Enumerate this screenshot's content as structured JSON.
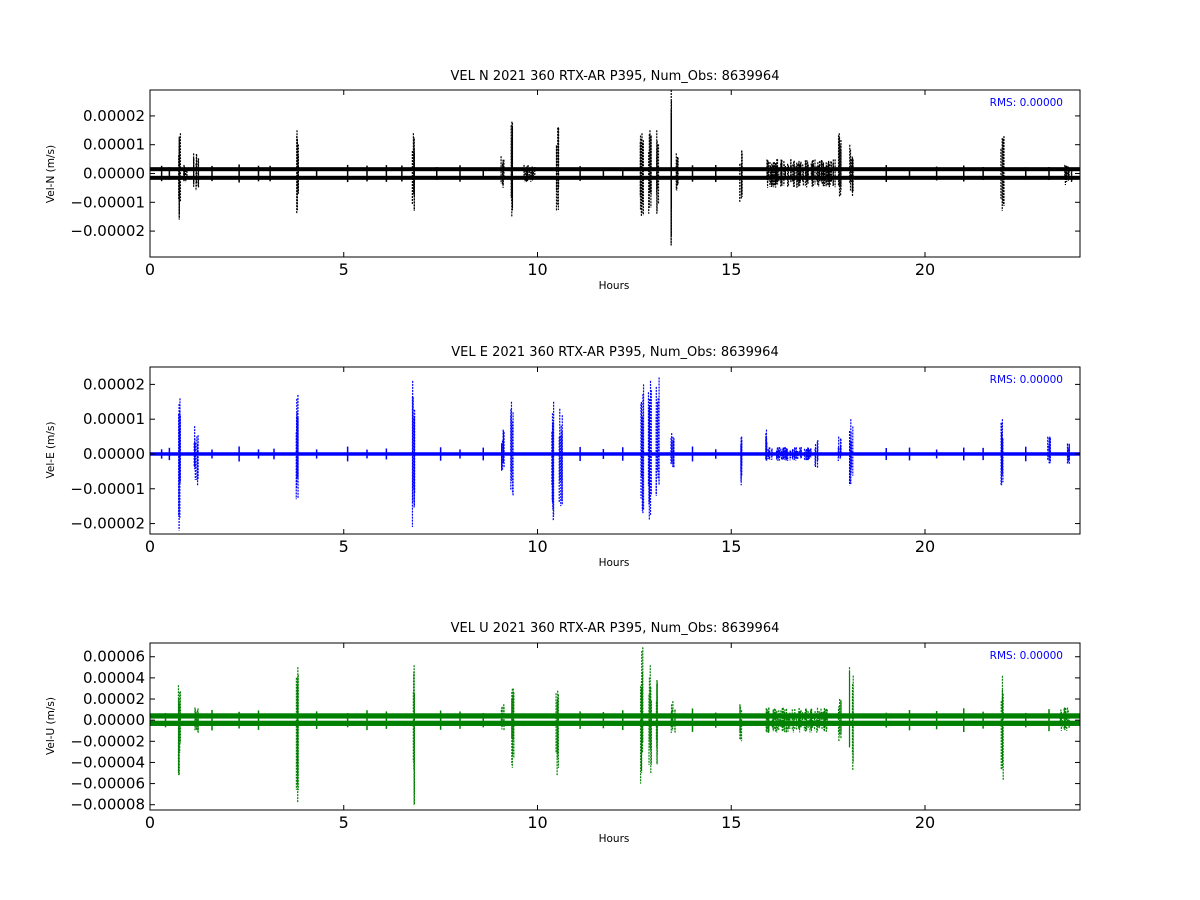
{
  "chart_data": [
    {
      "type": "scatter",
      "title": "VEL N 2021 360 RTX-AR  P395, Num_Obs: 8639964",
      "xlabel": "Hours",
      "ylabel": "Vel-N (m/s)",
      "rms_label": "RMS:  0.00000",
      "color": "#000000",
      "xlim": [
        0,
        24
      ],
      "ylim": [
        -2.9e-05,
        2.9e-05
      ],
      "xticks": [
        0,
        5,
        10,
        15,
        20
      ],
      "xtick_labels": [
        "0",
        "5",
        "10",
        "15",
        "20"
      ],
      "yticks": [
        2e-05,
        1e-05,
        0.0,
        -1e-05,
        -2e-05
      ],
      "ytick_labels": [
        "0.00002",
        "0.00001",
        "0.00000",
        "−0.00001",
        "−0.00002"
      ],
      "grid": false,
      "baseline_bands": [
        1.5e-06,
        -1.5e-06
      ],
      "band_halfwidth": 7e-07,
      "bursts": [
        {
          "x": 0.76,
          "max": 1.4e-05,
          "min": -1.6e-05,
          "width": 0.06
        },
        {
          "x": 0.9,
          "max": 3e-06,
          "min": -3e-06,
          "width": 0.12
        },
        {
          "x": 1.2,
          "max": 7e-06,
          "min": -6e-06,
          "width": 0.15
        },
        {
          "x": 3.8,
          "max": 1.5e-05,
          "min": -1.4e-05,
          "width": 0.06
        },
        {
          "x": 6.8,
          "max": 1.4e-05,
          "min": -1.3e-05,
          "width": 0.06
        },
        {
          "x": 9.1,
          "max": 6e-06,
          "min": -5e-06,
          "width": 0.08
        },
        {
          "x": 9.35,
          "max": 1.8e-05,
          "min": -1.5e-05,
          "width": 0.08
        },
        {
          "x": 9.8,
          "max": 3e-06,
          "min": -3e-06,
          "width": 0.3
        },
        {
          "x": 10.5,
          "max": 1.6e-05,
          "min": -1.3e-05,
          "width": 0.1
        },
        {
          "x": 12.7,
          "max": 1.4e-05,
          "min": -1.5e-05,
          "width": 0.1
        },
        {
          "x": 12.9,
          "max": 1.5e-05,
          "min": -1.4e-05,
          "width": 0.08
        },
        {
          "x": 13.1,
          "max": 1.5e-05,
          "min": -1.4e-05,
          "width": 0.08
        },
        {
          "x": 13.45,
          "max": 2.9e-05,
          "min": -2.5e-05,
          "width": 0.02
        },
        {
          "x": 13.6,
          "max": 7e-06,
          "min": -6e-06,
          "width": 0.06
        },
        {
          "x": 15.25,
          "max": 8e-06,
          "min": -1e-05,
          "width": 0.06
        },
        {
          "x": 16.8,
          "max": 5e-06,
          "min": -5e-06,
          "width": 1.8
        },
        {
          "x": 17.8,
          "max": 1.4e-05,
          "min": -8e-06,
          "width": 0.08
        },
        {
          "x": 18.1,
          "max": 1e-05,
          "min": -8e-06,
          "width": 0.1
        },
        {
          "x": 22.0,
          "max": 1.3e-05,
          "min": -1.3e-05,
          "width": 0.08
        },
        {
          "x": 23.7,
          "max": 3e-06,
          "min": -4e-06,
          "width": 0.2
        }
      ],
      "scattered_x": [
        0.3,
        0.5,
        1.6,
        2.3,
        2.8,
        3.1,
        4.3,
        5.1,
        5.6,
        6.1,
        6.5,
        7.4,
        8.0,
        8.6,
        11.1,
        11.7,
        12.2,
        14.0,
        14.6,
        19.0,
        19.6,
        20.3,
        21.0,
        21.5,
        22.6,
        23.2
      ]
    },
    {
      "type": "scatter",
      "title": "VEL E 2021 360 RTX-AR  P395, Num_Obs: 8639964",
      "xlabel": "Hours",
      "ylabel": "Vel-E (m/s)",
      "rms_label": "RMS:  0.00000",
      "color": "#0000ff",
      "xlim": [
        0,
        24
      ],
      "ylim": [
        -2.3e-05,
        2.5e-05
      ],
      "xticks": [
        0,
        5,
        10,
        15,
        20
      ],
      "xtick_labels": [
        "0",
        "5",
        "10",
        "15",
        "20"
      ],
      "yticks": [
        2e-05,
        1e-05,
        0.0,
        -1e-05,
        -2e-05
      ],
      "ytick_labels": [
        "0.00002",
        "0.00001",
        "0.00000",
        "−0.00001",
        "−0.00002"
      ],
      "grid": false,
      "baseline_bands": [
        0.0
      ],
      "band_halfwidth": 5e-07,
      "bursts": [
        {
          "x": 0.76,
          "max": 1.6e-05,
          "min": -2.2e-05,
          "width": 0.06
        },
        {
          "x": 1.2,
          "max": 8e-06,
          "min": -9e-06,
          "width": 0.12
        },
        {
          "x": 3.8,
          "max": 1.7e-05,
          "min": -1.3e-05,
          "width": 0.06
        },
        {
          "x": 6.8,
          "max": 2.1e-05,
          "min": -2.1e-05,
          "width": 0.06
        },
        {
          "x": 9.1,
          "max": 7e-06,
          "min": -5e-06,
          "width": 0.08
        },
        {
          "x": 9.35,
          "max": 1.5e-05,
          "min": -1.2e-05,
          "width": 0.08
        },
        {
          "x": 10.4,
          "max": 1.5e-05,
          "min": -1.9e-05,
          "width": 0.06
        },
        {
          "x": 10.6,
          "max": 1.3e-05,
          "min": -1.5e-05,
          "width": 0.08
        },
        {
          "x": 12.7,
          "max": 2e-05,
          "min": -1.7e-05,
          "width": 0.08
        },
        {
          "x": 12.9,
          "max": 2.1e-05,
          "min": -1.9e-05,
          "width": 0.08
        },
        {
          "x": 13.1,
          "max": 2.2e-05,
          "min": -1.2e-05,
          "width": 0.08
        },
        {
          "x": 13.5,
          "max": 6e-06,
          "min": -4e-06,
          "width": 0.12
        },
        {
          "x": 15.25,
          "max": 5e-06,
          "min": -9e-06,
          "width": 0.06
        },
        {
          "x": 16.5,
          "max": 2e-06,
          "min": -2e-06,
          "width": 1.2
        },
        {
          "x": 15.9,
          "max": 7e-06,
          "min": -2e-06,
          "width": 0.04
        },
        {
          "x": 17.2,
          "max": 4e-06,
          "min": -4e-06,
          "width": 0.08
        },
        {
          "x": 17.8,
          "max": 5e-06,
          "min": -2e-06,
          "width": 0.08
        },
        {
          "x": 18.1,
          "max": 1e-05,
          "min": -9e-06,
          "width": 0.1
        },
        {
          "x": 22.0,
          "max": 1e-05,
          "min": -9e-06,
          "width": 0.08
        },
        {
          "x": 23.2,
          "max": 5e-06,
          "min": -3e-06,
          "width": 0.08
        },
        {
          "x": 23.7,
          "max": 3e-06,
          "min": -3e-06,
          "width": 0.1
        }
      ],
      "scattered_x": [
        0.3,
        0.5,
        1.6,
        2.3,
        2.8,
        3.2,
        4.3,
        5.1,
        5.6,
        6.1,
        7.5,
        8.0,
        8.6,
        11.1,
        11.7,
        12.2,
        14.0,
        14.6,
        19.0,
        19.6,
        20.3,
        21.0,
        21.5,
        22.6
      ]
    },
    {
      "type": "scatter",
      "title": "VEL U 2021 360 RTX-AR  P395, Num_Obs: 8639964",
      "xlabel": "Hours",
      "ylabel": "Vel-U (m/s)",
      "rms_label": "RMS:  0.00000",
      "color": "#008000",
      "xlim": [
        0,
        24
      ],
      "ylim": [
        -8.5e-05,
        7.3e-05
      ],
      "xticks": [
        0,
        5,
        10,
        15,
        20
      ],
      "xtick_labels": [
        "0",
        "5",
        "10",
        "15",
        "20"
      ],
      "yticks": [
        6e-05,
        4e-05,
        2e-05,
        0.0,
        -2e-05,
        -4e-05,
        -6e-05,
        -8e-05
      ],
      "ytick_labels": [
        "0.00006",
        "0.00004",
        "0.00002",
        "0.00000",
        "−0.00002",
        "−0.00004",
        "−0.00006",
        "−0.00008"
      ],
      "grid": false,
      "baseline_bands": [
        4e-06,
        -3e-06
      ],
      "band_halfwidth": 2.5e-06,
      "bursts": [
        {
          "x": 0.76,
          "max": 3.3e-05,
          "min": -5.2e-05,
          "width": 0.06
        },
        {
          "x": 1.2,
          "max": 1.2e-05,
          "min": -1.2e-05,
          "width": 0.12
        },
        {
          "x": 3.8,
          "max": 5e-05,
          "min": -7.8e-05,
          "width": 0.06
        },
        {
          "x": 6.8,
          "max": 5.2e-05,
          "min": -8e-05,
          "width": 0.06
        },
        {
          "x": 9.1,
          "max": 1.5e-05,
          "min": -1e-05,
          "width": 0.08
        },
        {
          "x": 9.35,
          "max": 3e-05,
          "min": -4.5e-05,
          "width": 0.08
        },
        {
          "x": 10.5,
          "max": 2.8e-05,
          "min": -5.2e-05,
          "width": 0.1
        },
        {
          "x": 12.7,
          "max": 6.9e-05,
          "min": -6e-05,
          "width": 0.08
        },
        {
          "x": 12.9,
          "max": 5.2e-05,
          "min": -5e-05,
          "width": 0.08
        },
        {
          "x": 13.1,
          "max": 3.8e-05,
          "min": -4.2e-05,
          "width": 0.08
        },
        {
          "x": 13.5,
          "max": 1.8e-05,
          "min": -1.2e-05,
          "width": 0.12
        },
        {
          "x": 15.25,
          "max": 1.5e-05,
          "min": -2e-05,
          "width": 0.06
        },
        {
          "x": 16.7,
          "max": 1.2e-05,
          "min": -1.2e-05,
          "width": 1.6
        },
        {
          "x": 17.8,
          "max": 2e-05,
          "min": -2e-05,
          "width": 0.08
        },
        {
          "x": 18.1,
          "max": 5e-05,
          "min": -4.7e-05,
          "width": 0.1
        },
        {
          "x": 22.0,
          "max": 4.2e-05,
          "min": -5.7e-05,
          "width": 0.08
        },
        {
          "x": 23.6,
          "max": 1.2e-05,
          "min": -1e-05,
          "width": 0.25
        }
      ],
      "scattered_x": [
        0.4,
        1.6,
        2.3,
        2.8,
        4.3,
        5.1,
        5.6,
        6.1,
        7.5,
        8.0,
        8.6,
        11.1,
        11.7,
        12.2,
        14.0,
        14.6,
        19.0,
        19.6,
        20.3,
        21.0,
        21.5,
        22.6,
        23.2
      ]
    }
  ]
}
